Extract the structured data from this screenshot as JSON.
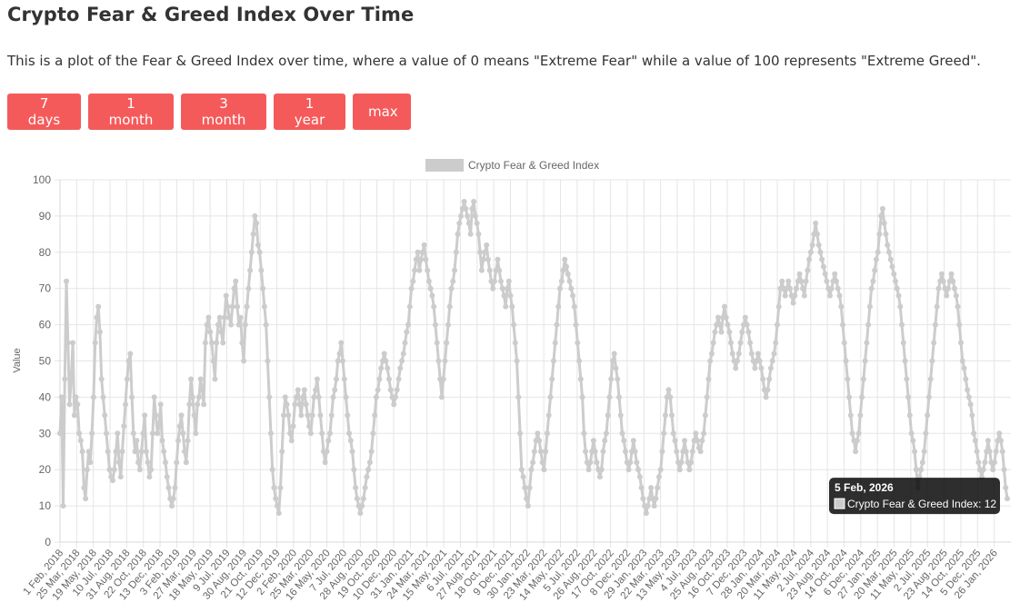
{
  "page": {
    "title": "Crypto Fear & Greed Index Over Time",
    "description": "This is a plot of the Fear & Greed Index over time, where a value of 0 means \"Extreme Fear\" while a value of 100 represents \"Extreme Greed\"."
  },
  "range_buttons": [
    "7 days",
    "1 month",
    "3 month",
    "1 year",
    "max"
  ],
  "chart_data": {
    "type": "line",
    "title": "",
    "legend": {
      "label": "Crypto Fear & Greed Index",
      "placement": "top-center"
    },
    "ylabel": "Value",
    "xlabel": "",
    "ylim": [
      0,
      100
    ],
    "y_ticks": [
      0,
      10,
      20,
      30,
      40,
      50,
      60,
      70,
      80,
      90,
      100
    ],
    "grid": true,
    "series_color": "#cccccc",
    "x_tick_labels": [
      "1 Feb, 2018",
      "25 Mar, 2018",
      "19 May, 2018",
      "10 Jul, 2018",
      "31 Aug, 2018",
      "22 Oct, 2018",
      "13 Dec, 2018",
      "3 Feb, 2019",
      "27 Mar, 2019",
      "18 May, 2019",
      "9 Jul, 2019",
      "30 Aug, 2019",
      "21 Oct, 2019",
      "12 Dec, 2019",
      "2 Feb, 2020",
      "25 Mar, 2020",
      "16 May, 2020",
      "7 Jul, 2020",
      "28 Aug, 2020",
      "19 Oct, 2020",
      "10 Dec, 2020",
      "31 Jan, 2021",
      "24 Mar, 2021",
      "15 May, 2021",
      "6 Jul, 2021",
      "27 Aug, 2021",
      "18 Oct, 2021",
      "9 Dec, 2021",
      "30 Jan, 2022",
      "23 Mar, 2022",
      "14 May, 2022",
      "5 Jul, 2022",
      "26 Aug, 2022",
      "17 Oct, 2022",
      "8 Dec, 2022",
      "29 Jan, 2023",
      "22 Mar, 2023",
      "13 May, 2023",
      "4 Jul, 2023",
      "25 Aug, 2023",
      "16 Oct, 2023",
      "7 Dec, 2023",
      "28 Jan, 2024",
      "20 Mar, 2024",
      "11 May, 2024",
      "2 Jul, 2024",
      "23 Aug, 2024",
      "14 Oct, 2024",
      "6 Dec, 2024",
      "27 Jan, 2025",
      "20 Mar, 2025",
      "11 May, 2025",
      "2 Jul, 2025",
      "23 Aug, 2025",
      "14 Oct, 2025",
      "5 Dec, 2025",
      "26 Jan, 2026"
    ],
    "series": [
      {
        "name": "Crypto Fear & Greed Index",
        "x_start": "1 Feb, 2018",
        "x_end": "5 Feb, 2026",
        "values": [
          30,
          40,
          10,
          45,
          72,
          55,
          38,
          45,
          55,
          35,
          40,
          38,
          30,
          28,
          25,
          15,
          12,
          20,
          25,
          22,
          30,
          40,
          55,
          62,
          65,
          58,
          45,
          40,
          35,
          30,
          25,
          20,
          18,
          17,
          20,
          25,
          30,
          22,
          18,
          25,
          32,
          38,
          45,
          50,
          52,
          40,
          30,
          25,
          28,
          22,
          20,
          25,
          30,
          35,
          25,
          22,
          18,
          20,
          30,
          40,
          35,
          30,
          32,
          38,
          28,
          25,
          22,
          18,
          15,
          12,
          10,
          12,
          15,
          22,
          28,
          32,
          35,
          30,
          25,
          22,
          28,
          38,
          45,
          40,
          35,
          30,
          38,
          40,
          45,
          42,
          38,
          55,
          60,
          62,
          58,
          55,
          50,
          45,
          55,
          60,
          62,
          58,
          55,
          62,
          68,
          65,
          62,
          60,
          65,
          70,
          72,
          65,
          60,
          62,
          55,
          50,
          60,
          65,
          70,
          75,
          80,
          85,
          90,
          88,
          82,
          80,
          75,
          70,
          65,
          60,
          50,
          40,
          30,
          20,
          15,
          12,
          10,
          8,
          15,
          25,
          35,
          40,
          38,
          35,
          30,
          28,
          32,
          38,
          40,
          42,
          38,
          35,
          40,
          42,
          38,
          35,
          32,
          30,
          35,
          40,
          42,
          45,
          40,
          35,
          30,
          25,
          22,
          25,
          28,
          30,
          35,
          40,
          42,
          45,
          50,
          52,
          55,
          50,
          45,
          40,
          35,
          30,
          28,
          25,
          20,
          15,
          12,
          10,
          8,
          10,
          12,
          15,
          18,
          20,
          22,
          25,
          30,
          35,
          40,
          42,
          45,
          48,
          50,
          52,
          50,
          48,
          45,
          42,
          40,
          38,
          40,
          42,
          45,
          48,
          50,
          52,
          55,
          58,
          60,
          65,
          70,
          72,
          75,
          78,
          80,
          75,
          78,
          80,
          82,
          78,
          75,
          72,
          70,
          68,
          65,
          60,
          55,
          50,
          45,
          40,
          45,
          50,
          55,
          60,
          65,
          70,
          72,
          75,
          80,
          85,
          88,
          90,
          92,
          94,
          92,
          90,
          88,
          85,
          92,
          94,
          90,
          88,
          85,
          80,
          75,
          78,
          80,
          82,
          78,
          75,
          72,
          70,
          72,
          75,
          78,
          75,
          72,
          70,
          68,
          65,
          70,
          72,
          68,
          65,
          60,
          55,
          50,
          40,
          30,
          20,
          18,
          15,
          12,
          10,
          15,
          20,
          22,
          25,
          28,
          30,
          28,
          25,
          22,
          20,
          25,
          30,
          35,
          40,
          45,
          50,
          55,
          60,
          65,
          70,
          72,
          75,
          78,
          76,
          74,
          72,
          70,
          68,
          65,
          60,
          55,
          50,
          45,
          40,
          30,
          25,
          22,
          20,
          22,
          25,
          28,
          25,
          22,
          20,
          18,
          20,
          25,
          28,
          30,
          35,
          40,
          45,
          50,
          52,
          48,
          45,
          40,
          35,
          30,
          28,
          25,
          22,
          20,
          22,
          25,
          28,
          25,
          22,
          20,
          18,
          15,
          12,
          10,
          8,
          10,
          12,
          15,
          12,
          10,
          12,
          15,
          18,
          20,
          25,
          30,
          35,
          40,
          42,
          40,
          35,
          30,
          28,
          25,
          22,
          20,
          22,
          25,
          28,
          25,
          22,
          20,
          22,
          25,
          28,
          30,
          28,
          26,
          25,
          28,
          30,
          35,
          40,
          45,
          50,
          52,
          55,
          58,
          60,
          62,
          60,
          58,
          62,
          65,
          62,
          60,
          58,
          55,
          52,
          50,
          48,
          50,
          52,
          55,
          58,
          60,
          62,
          60,
          58,
          55,
          52,
          50,
          48,
          50,
          52,
          50,
          48,
          45,
          42,
          40,
          42,
          45,
          48,
          50,
          52,
          55,
          60,
          65,
          70,
          72,
          70,
          68,
          70,
          72,
          70,
          68,
          66,
          68,
          70,
          72,
          74,
          72,
          70,
          68,
          72,
          75,
          78,
          80,
          82,
          85,
          88,
          85,
          82,
          80,
          78,
          76,
          74,
          72,
          70,
          68,
          70,
          72,
          74,
          72,
          70,
          68,
          65,
          60,
          55,
          50,
          45,
          40,
          35,
          30,
          28,
          25,
          28,
          30,
          35,
          40,
          45,
          50,
          55,
          60,
          65,
          70,
          72,
          75,
          78,
          80,
          85,
          90,
          92,
          88,
          85,
          82,
          80,
          78,
          76,
          74,
          72,
          70,
          68,
          65,
          60,
          55,
          50,
          45,
          40,
          35,
          30,
          28,
          25,
          20,
          15,
          18,
          20,
          22,
          25,
          30,
          35,
          40,
          45,
          50,
          55,
          60,
          65,
          70,
          72,
          74,
          72,
          70,
          68,
          70,
          72,
          74,
          72,
          70,
          68,
          65,
          60,
          55,
          50,
          48,
          45,
          42,
          40,
          38,
          35,
          30,
          28,
          25,
          22,
          20,
          18,
          20,
          22,
          25,
          28,
          25,
          22,
          20,
          22,
          25,
          28,
          30,
          28,
          25,
          20,
          15,
          12
        ]
      }
    ],
    "tooltip": {
      "title": "5 Feb, 2026",
      "label": "Crypto Fear & Greed Index",
      "value": 12
    }
  }
}
